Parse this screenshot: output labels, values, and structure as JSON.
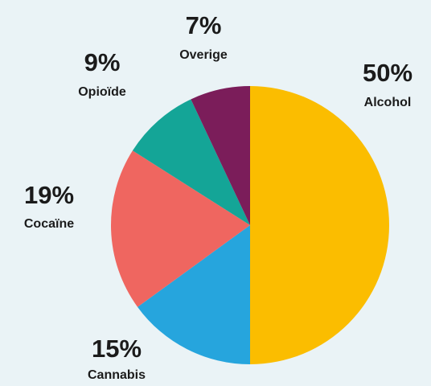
{
  "chart_data": {
    "type": "pie",
    "title": "",
    "start_angle_deg": 0,
    "direction": "clockwise",
    "slices": [
      {
        "label": "Alcohol",
        "percent_label": "50%",
        "value": 50,
        "color": "#fbbd00"
      },
      {
        "label": "Cannabis",
        "percent_label": "15%",
        "value": 15,
        "color": "#26a5dd"
      },
      {
        "label": "Cocaïne",
        "percent_label": "19%",
        "value": 19,
        "color": "#ef6660"
      },
      {
        "label": "Opioïde",
        "percent_label": "9%",
        "value": 9,
        "color": "#14a597"
      },
      {
        "label": "Overige",
        "percent_label": "7%",
        "value": 7,
        "color": "#7b1d5a"
      }
    ]
  }
}
